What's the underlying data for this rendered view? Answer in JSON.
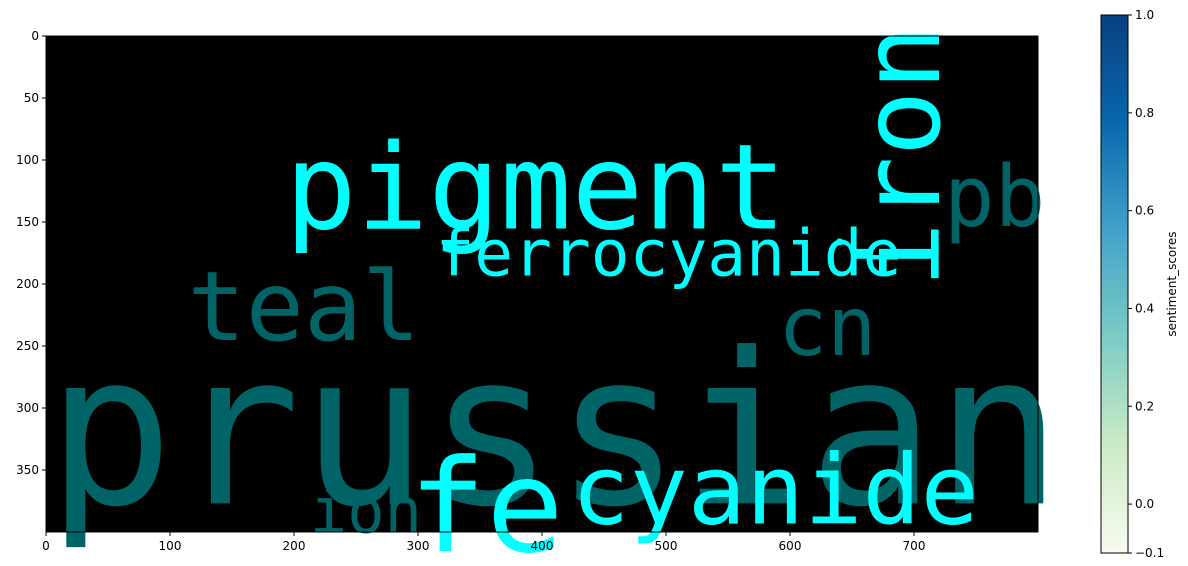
{
  "chart_data": {
    "type": "wordcloud",
    "x_ticks": [
      "0",
      "100",
      "200",
      "300",
      "400",
      "500",
      "600",
      "700"
    ],
    "y_ticks": [
      "0",
      "50",
      "100",
      "150",
      "200",
      "250",
      "300",
      "350"
    ],
    "xlim": [
      0,
      800
    ],
    "ylim": [
      400,
      0
    ],
    "background": "#000000",
    "colors": {
      "bright": "#00ffff",
      "dark": "#006466"
    },
    "words": [
      {
        "text": "pigment",
        "tone": "bright",
        "x": 395,
        "y": 123,
        "size": 96,
        "rotate": 0
      },
      {
        "text": "iron",
        "tone": "bright",
        "x": 690,
        "y": 97,
        "size": 88,
        "rotate": -90
      },
      {
        "text": "pb",
        "tone": "dark",
        "x": 765,
        "y": 130,
        "size": 68,
        "rotate": 0
      },
      {
        "text": "ferrocyanide",
        "tone": "bright",
        "x": 502,
        "y": 176,
        "size": 52,
        "rotate": 0
      },
      {
        "text": "teal",
        "tone": "dark",
        "x": 208,
        "y": 218,
        "size": 78,
        "rotate": 0
      },
      {
        "text": "cn",
        "tone": "dark",
        "x": 630,
        "y": 235,
        "size": 66,
        "rotate": 0
      },
      {
        "text": "prussian",
        "tone": "dark",
        "x": 410,
        "y": 318,
        "size": 170,
        "rotate": 0
      },
      {
        "text": "fe",
        "tone": "bright",
        "x": 355,
        "y": 380,
        "size": 104,
        "rotate": 0
      },
      {
        "text": "cyanide",
        "tone": "bright",
        "x": 588,
        "y": 366,
        "size": 78,
        "rotate": 0
      },
      {
        "text": "ion",
        "tone": "dark",
        "x": 258,
        "y": 383,
        "size": 50,
        "rotate": 0
      }
    ],
    "colorbar": {
      "label": "sentiment_scores",
      "range": [
        -0.1,
        1.0
      ],
      "ticks": [
        "0.0",
        "0.2",
        "0.4",
        "0.6",
        "0.8",
        "1.0"
      ],
      "tick_values": [
        0.0,
        0.2,
        0.4,
        0.6,
        0.8,
        1.0
      ],
      "first_tick": "−0.1",
      "gradient": [
        "#f7fcf0",
        "#ccebc5",
        "#7bccc4",
        "#43a2ca",
        "#0868ac",
        "#084081"
      ]
    }
  }
}
